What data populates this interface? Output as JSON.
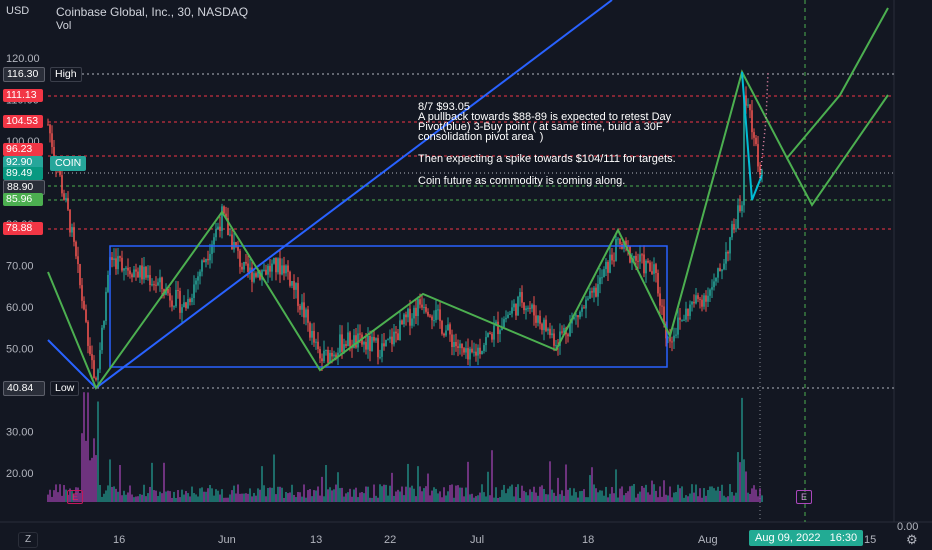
{
  "header": {
    "currency": "USD",
    "symbol_line": "Coinbase Global, Inc., 30, NASDAQ",
    "volume_label": "Vol"
  },
  "y_axis": {
    "ticks": [
      "120.00",
      "110.00",
      "100.00",
      "90.00",
      "80.00",
      "70.00",
      "60.00",
      "50.00",
      "40.00",
      "30.00",
      "20.00"
    ],
    "zero_label": "0.00"
  },
  "price_tags": {
    "high_value": "116.30",
    "high_label": "High",
    "t111": "111.13",
    "t104": "104.53",
    "t96": "96.23",
    "current_value": "92.90",
    "current_label": "COIN",
    "t89_49": "89.49",
    "t88_90": "88.90",
    "t85_96": "85.96",
    "t78_88": "78.88",
    "low_value": "40.84",
    "low_label": "Low"
  },
  "annotation": {
    "line1": "8/7 $93.05",
    "line2": "A pullback towards $88-89 is expected to retest Day",
    "line3": "Pivot(blue) 3-Buy point ( at same time, build a 30F",
    "line4": "consolidation pivot area  )",
    "line5": "Then expecting a spike towards $104/111 for targets.",
    "line6": "Coin future as commodity is coming along."
  },
  "x_axis": {
    "labels": [
      "16",
      "Jun",
      "13",
      "22",
      "Jul",
      "18",
      "Aug",
      "15"
    ],
    "crosshair_date": "Aug 09, 2022",
    "crosshair_time": "16:30"
  },
  "controls": {
    "zoom_label": "Z",
    "earnings_label": "E"
  },
  "colors": {
    "background": "#131722",
    "green_line": "#4caf50",
    "blue_line": "#2962ff",
    "red_level": "#f23645",
    "white_level": "#b2b5be",
    "green_level": "#4caf50",
    "candle_up": "#26a69a",
    "candle_down": "#ef5350"
  },
  "chart_data": {
    "type": "candlestick",
    "symbol": "COIN",
    "interval": "30",
    "ylim": [
      10,
      130
    ],
    "price_levels": {
      "high": 116.3,
      "resistance": [
        111.13,
        104.53,
        96.23
      ],
      "current": 92.9,
      "support": [
        89.49,
        88.9,
        85.96,
        78.88
      ],
      "low": 40.84
    },
    "consolidation_box": {
      "top": 75,
      "bottom": 46
    },
    "price_path": [
      {
        "date": "May 10",
        "price": 104
      },
      {
        "date": "May 11",
        "price": 80
      },
      {
        "date": "May 12",
        "price": 41
      },
      {
        "date": "May 16",
        "price": 72
      },
      {
        "date": "May 20",
        "price": 67
      },
      {
        "date": "May 25",
        "price": 60
      },
      {
        "date": "May 31",
        "price": 82
      },
      {
        "date": "Jun 03",
        "price": 68
      },
      {
        "date": "Jun 07",
        "price": 70
      },
      {
        "date": "Jun 10",
        "price": 58
      },
      {
        "date": "Jun 13",
        "price": 47
      },
      {
        "date": "Jun 16",
        "price": 52
      },
      {
        "date": "Jun 22",
        "price": 50
      },
      {
        "date": "Jun 27",
        "price": 62
      },
      {
        "date": "Jun 30",
        "price": 47
      },
      {
        "date": "Jul 05",
        "price": 56
      },
      {
        "date": "Jul 08",
        "price": 62
      },
      {
        "date": "Jul 12",
        "price": 52
      },
      {
        "date": "Jul 18",
        "price": 62
      },
      {
        "date": "Jul 21",
        "price": 75
      },
      {
        "date": "Jul 26",
        "price": 68
      },
      {
        "date": "Jul 27",
        "price": 52
      },
      {
        "date": "Aug 01",
        "price": 60
      },
      {
        "date": "Aug 03",
        "price": 65
      },
      {
        "date": "Aug 05",
        "price": 80
      },
      {
        "date": "Aug 06",
        "price": 86
      },
      {
        "date": "Aug 08",
        "price": 116
      },
      {
        "date": "Aug 09",
        "price": 92.9
      }
    ]
  }
}
